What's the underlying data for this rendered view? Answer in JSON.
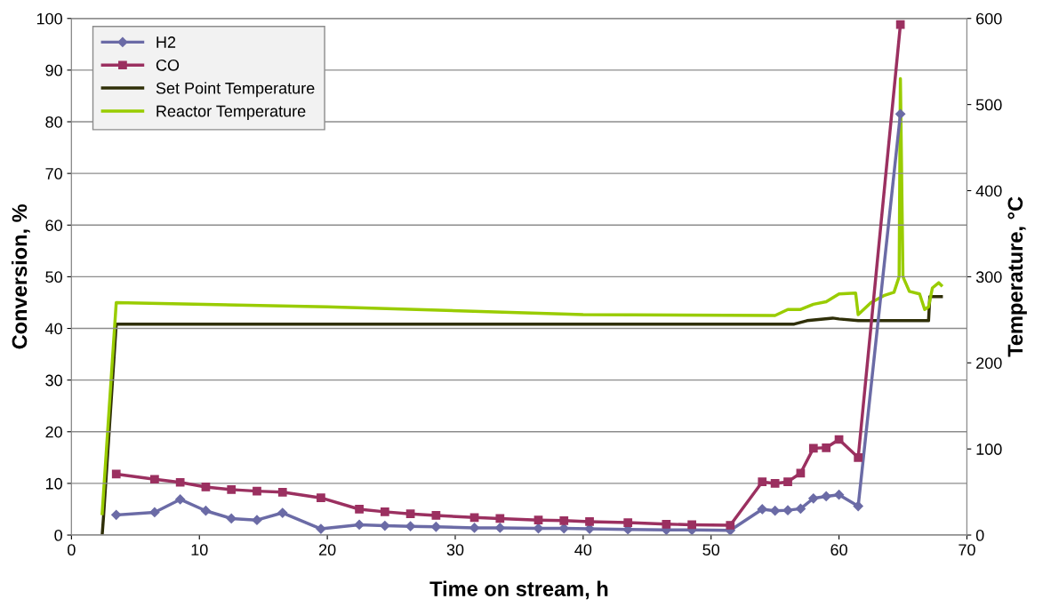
{
  "chart_data": {
    "type": "line",
    "xlabel": "Time on stream, h",
    "ylabel": "Conversion, %",
    "y2label": "Temperature, °C",
    "xlim": [
      0,
      70
    ],
    "xticks": [
      0,
      10,
      20,
      30,
      40,
      50,
      60,
      70
    ],
    "ylim": [
      0,
      100
    ],
    "yticks": [
      0,
      10,
      20,
      30,
      40,
      50,
      60,
      70,
      80,
      90,
      100
    ],
    "y2lim": [
      0,
      600
    ],
    "y2ticks": [
      0,
      100,
      200,
      300,
      400,
      500,
      600
    ],
    "grid": "y",
    "legend": "top left",
    "series": [
      {
        "name": "H2",
        "color": "#6b6ba6",
        "marker": "diamond",
        "x": [
          3.5,
          6.5,
          8.5,
          10.5,
          12.5,
          14.5,
          16.5,
          19.5,
          22.5,
          24.5,
          26.5,
          28.5,
          31.5,
          33.5,
          36.5,
          38.5,
          40.5,
          43.5,
          46.5,
          48.5,
          51.5,
          54,
          55,
          56,
          57,
          58,
          59,
          60,
          61.5,
          64.8
        ],
        "values": [
          3.9,
          4.4,
          6.9,
          4.7,
          3.2,
          2.9,
          4.3,
          1.2,
          2.0,
          1.8,
          1.7,
          1.6,
          1.4,
          1.4,
          1.3,
          1.3,
          1.2,
          1.1,
          1.0,
          1.0,
          0.9,
          5.0,
          4.7,
          4.8,
          5.1,
          7.1,
          7.5,
          7.8,
          5.6,
          81.5
        ]
      },
      {
        "name": "CO",
        "color": "#9b3060",
        "marker": "square",
        "x": [
          3.5,
          6.5,
          8.5,
          10.5,
          12.5,
          14.5,
          16.5,
          19.5,
          22.5,
          24.5,
          26.5,
          28.5,
          31.5,
          33.5,
          36.5,
          38.5,
          40.5,
          43.5,
          46.5,
          48.5,
          51.5,
          54,
          55,
          56,
          57,
          58,
          59,
          60,
          61.5,
          64.8
        ],
        "values": [
          11.8,
          10.8,
          10.2,
          9.3,
          8.8,
          8.5,
          8.3,
          7.2,
          5.0,
          4.5,
          4.1,
          3.8,
          3.4,
          3.2,
          2.9,
          2.8,
          2.6,
          2.4,
          2.1,
          2.0,
          1.9,
          10.3,
          10.0,
          10.3,
          12.0,
          16.8,
          16.9,
          18.5,
          15.0,
          98.8
        ]
      },
      {
        "name": "Set Point Temperature",
        "color": "#2f2f08",
        "marker": "none",
        "axis": "y2",
        "x": [
          2.4,
          2.5,
          3.5,
          56.5,
          57.5,
          59.5,
          60,
          61.5,
          67,
          67.1,
          68
        ],
        "values": [
          0,
          20,
          245,
          245,
          249,
          252,
          251,
          249,
          249,
          277,
          277
        ]
      },
      {
        "name": "Reactor Temperature",
        "color": "#99cc00",
        "marker": "none",
        "axis": "y2",
        "x": [
          2.4,
          3.5,
          20,
          40,
          55,
          56,
          57,
          58,
          59,
          60,
          61.3,
          61.5,
          62.5,
          63.5,
          64.3,
          64.7,
          64.8,
          65.0,
          65.5,
          66.3,
          66.7,
          67,
          67.3,
          67.8,
          68
        ],
        "values": [
          25,
          270,
          265,
          256,
          255,
          262,
          262,
          268,
          271,
          280,
          281,
          256,
          270,
          278,
          282,
          300,
          530,
          300,
          283,
          280,
          262,
          265,
          287,
          293,
          290
        ]
      }
    ]
  }
}
